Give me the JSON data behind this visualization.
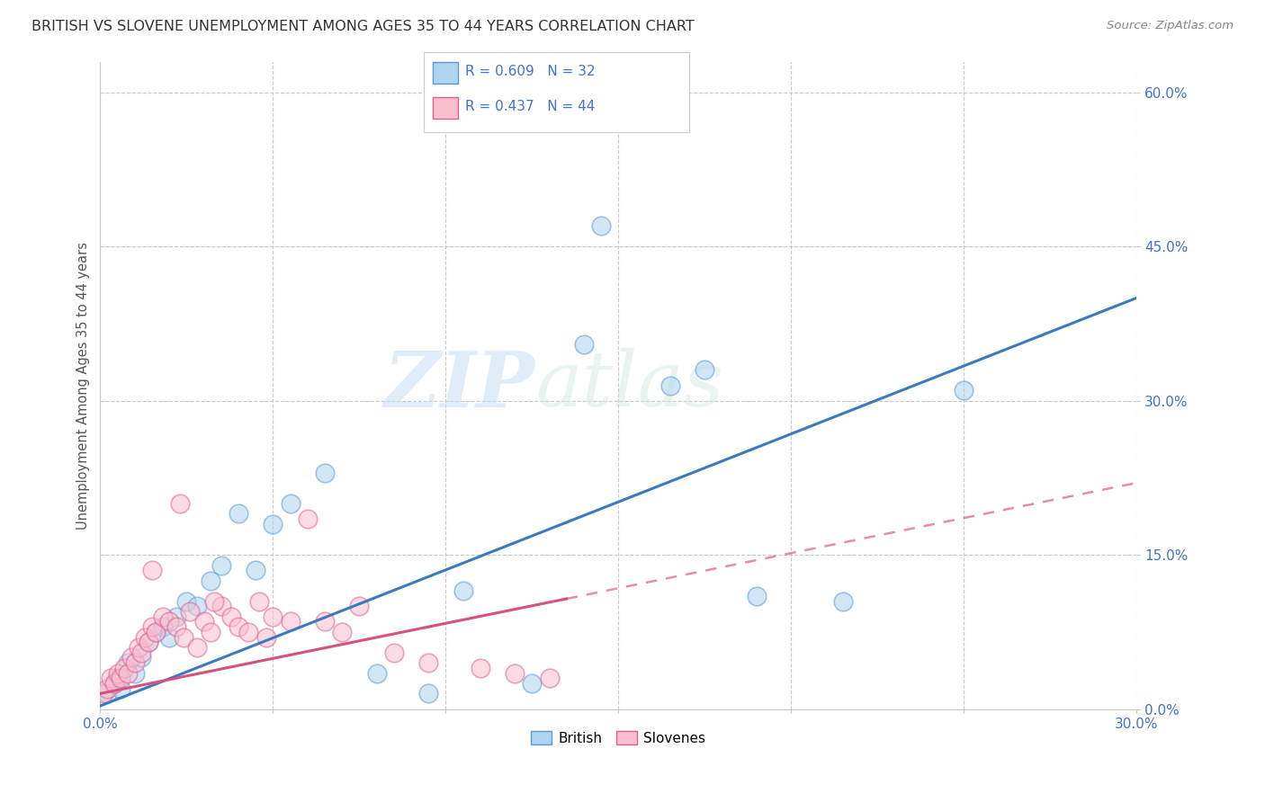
{
  "title": "BRITISH VS SLOVENE UNEMPLOYMENT AMONG AGES 35 TO 44 YEARS CORRELATION CHART",
  "source": "Source: ZipAtlas.com",
  "ylabel": "Unemployment Among Ages 35 to 44 years",
  "ytick_labels": [
    "0.0%",
    "15.0%",
    "30.0%",
    "45.0%",
    "60.0%"
  ],
  "ytick_values": [
    0.0,
    15.0,
    30.0,
    45.0,
    60.0
  ],
  "xtick_values": [
    0.0,
    5.0,
    10.0,
    15.0,
    20.0,
    25.0,
    30.0
  ],
  "xmin": 0.0,
  "xmax": 30.0,
  "ymin": 0.0,
  "ymax": 63.0,
  "british_color": "#aed4f0",
  "slovene_color": "#fbbfd0",
  "british_edge_color": "#5b9bd5",
  "slovene_edge_color": "#e06090",
  "british_line_color": "#3a7abf",
  "slovene_line_color": "#d94f80",
  "label_color": "#4472c4",
  "legend_label_british": "British",
  "legend_label_slovene": "Slovenes",
  "brit_line_x0": 0.0,
  "brit_line_y0": 0.3,
  "brit_line_x1": 30.0,
  "brit_line_y1": 40.0,
  "slov_line_x0": 0.0,
  "slov_line_y0": 1.5,
  "slov_solid_x1": 13.5,
  "slov_line_x1": 30.0,
  "slov_line_y1": 22.0,
  "british_x": [
    0.2,
    0.4,
    0.5,
    0.6,
    0.8,
    1.0,
    1.2,
    1.4,
    1.6,
    1.8,
    2.0,
    2.2,
    2.5,
    2.8,
    3.2,
    3.5,
    4.0,
    4.5,
    5.0,
    5.5,
    6.5,
    8.0,
    10.5,
    12.5,
    14.5,
    16.5,
    19.0,
    21.5,
    25.0,
    14.0,
    17.5,
    9.5
  ],
  "british_y": [
    1.5,
    2.5,
    3.0,
    2.0,
    4.5,
    3.5,
    5.0,
    6.5,
    7.5,
    8.0,
    7.0,
    9.0,
    10.5,
    10.0,
    12.5,
    14.0,
    19.0,
    13.5,
    18.0,
    20.0,
    23.0,
    3.5,
    11.5,
    2.5,
    47.0,
    31.5,
    11.0,
    10.5,
    31.0,
    35.5,
    33.0,
    1.5
  ],
  "slovene_x": [
    0.1,
    0.2,
    0.3,
    0.4,
    0.5,
    0.6,
    0.7,
    0.8,
    0.9,
    1.0,
    1.1,
    1.2,
    1.3,
    1.4,
    1.5,
    1.6,
    1.8,
    2.0,
    2.2,
    2.4,
    2.6,
    2.8,
    3.0,
    3.2,
    3.5,
    3.8,
    4.0,
    4.3,
    4.6,
    5.0,
    5.5,
    6.0,
    6.5,
    7.0,
    7.5,
    8.5,
    9.5,
    11.0,
    12.0,
    13.0,
    2.3,
    3.3,
    4.8,
    1.5
  ],
  "slovene_y": [
    1.5,
    2.0,
    3.0,
    2.5,
    3.5,
    3.0,
    4.0,
    3.5,
    5.0,
    4.5,
    6.0,
    5.5,
    7.0,
    6.5,
    8.0,
    7.5,
    9.0,
    8.5,
    8.0,
    7.0,
    9.5,
    6.0,
    8.5,
    7.5,
    10.0,
    9.0,
    8.0,
    7.5,
    10.5,
    9.0,
    8.5,
    18.5,
    8.5,
    7.5,
    10.0,
    5.5,
    4.5,
    4.0,
    3.5,
    3.0,
    20.0,
    10.5,
    7.0,
    13.5
  ],
  "watermark_zip": "ZIP",
  "watermark_atlas": "atlas",
  "background_color": "#ffffff",
  "grid_color": "#c8c8c8"
}
